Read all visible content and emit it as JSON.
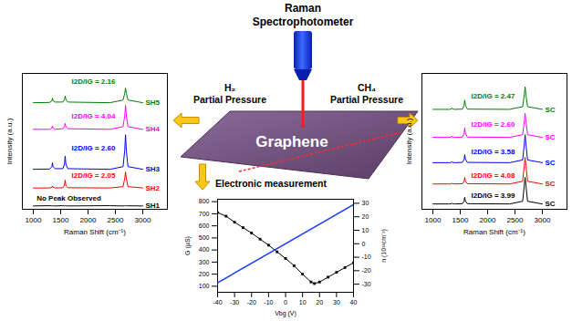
{
  "diagram": {
    "probe_label": [
      "Raman",
      "Spectrophotometer"
    ],
    "left_gas": [
      "H₂",
      "Partial Pressure"
    ],
    "right_gas": [
      "CH₄",
      "Partial Pressure"
    ],
    "sheet_label": "Graphene",
    "measurement_label": "Electronic measurement"
  },
  "chart_data": [
    {
      "type": "line",
      "xlabel": "Raman Shift (cm⁻¹)",
      "ylabel": "Intensity (a.u.)",
      "tick_labels": "x",
      "x": [
        1000,
        1300,
        1340,
        1350,
        1360,
        1400,
        1540,
        1570,
        1582,
        1595,
        1630,
        2400,
        2640,
        2670,
        2685,
        2700,
        2730,
        3000
      ],
      "xlim": [
        800,
        3450
      ],
      "xticks": [
        1000,
        1500,
        2000,
        2500,
        3000
      ],
      "ylim": [
        0,
        10.2
      ],
      "series": [
        {
          "name": "SH1",
          "color": "#000000",
          "values": [
            0.25,
            0.27,
            0.25,
            0.28,
            0.26,
            0.25,
            0.27,
            0.25,
            0.28,
            0.26,
            0.25,
            0.27,
            0.25,
            0.26,
            0.28,
            0.25,
            0.26,
            0.25
          ]
        },
        {
          "name": "SH2",
          "color": "#ff0000",
          "values": [
            1.6,
            1.6,
            1.65,
            1.75,
            1.65,
            1.6,
            1.62,
            1.8,
            2.2,
            1.8,
            1.62,
            1.6,
            1.7,
            2.3,
            2.8,
            2.3,
            1.7,
            1.6
          ]
        },
        {
          "name": "SH3",
          "color": "#0000ff",
          "values": [
            3.0,
            3.02,
            3.2,
            3.5,
            3.2,
            3.05,
            3.05,
            3.4,
            4.0,
            3.4,
            3.05,
            3.0,
            3.2,
            4.4,
            5.6,
            4.4,
            3.2,
            3.0
          ]
        },
        {
          "name": "SH4",
          "color": "#ff00ff",
          "values": [
            6.0,
            6.0,
            6.1,
            6.25,
            6.1,
            6.0,
            6.05,
            6.2,
            6.45,
            6.2,
            6.05,
            6.0,
            6.2,
            7.0,
            7.8,
            7.0,
            6.2,
            6.0
          ]
        },
        {
          "name": "SH5",
          "color": "#008000",
          "values": [
            8.0,
            8.02,
            8.15,
            8.35,
            8.15,
            8.05,
            8.05,
            8.25,
            8.5,
            8.25,
            8.05,
            8.0,
            8.2,
            8.7,
            9.1,
            8.7,
            8.2,
            8.0
          ]
        }
      ],
      "annotations": [
        {
          "text": "No Peak Observed",
          "x": 1650,
          "y": 0.85,
          "color": "#000000"
        },
        {
          "text": "I2D/IG = 2.05",
          "x": 2100,
          "y": 2.55,
          "color": "#ff0000"
        },
        {
          "text": "I2D/IG = 2.60",
          "x": 2100,
          "y": 4.6,
          "color": "#0000ff"
        },
        {
          "text": "I2D/IG = 4.04",
          "x": 2100,
          "y": 7.0,
          "color": "#ff00ff"
        },
        {
          "text": "I2D/IG = 2.16",
          "x": 2100,
          "y": 9.6,
          "color": "#008000"
        }
      ]
    },
    {
      "type": "line",
      "xlabel": "Raman Shift (cm⁻¹)",
      "ylabel": "Intensity (a.u.)",
      "tick_labels": "x",
      "x": [
        1000,
        1300,
        1340,
        1350,
        1360,
        1400,
        1540,
        1570,
        1582,
        1595,
        1630,
        2400,
        2640,
        2670,
        2685,
        2700,
        2730,
        3000
      ],
      "xlim": [
        800,
        3450
      ],
      "xticks": [
        1000,
        1500,
        2000,
        2500,
        3000
      ],
      "ylim": [
        0,
        10.2
      ],
      "series": [
        {
          "name": "SC",
          "color": "#000000",
          "values": [
            0.4,
            0.4,
            0.42,
            0.45,
            0.42,
            0.4,
            0.42,
            0.6,
            0.9,
            0.6,
            0.42,
            0.4,
            0.6,
            1.8,
            2.4,
            1.8,
            0.6,
            0.4
          ]
        },
        {
          "name": "SC",
          "color": "#ff0000",
          "values": [
            1.9,
            1.9,
            1.92,
            1.95,
            1.92,
            1.9,
            1.92,
            2.1,
            2.4,
            2.1,
            1.92,
            1.9,
            2.1,
            3.3,
            3.9,
            3.3,
            2.1,
            1.9
          ]
        },
        {
          "name": "SC",
          "color": "#0000ff",
          "values": [
            3.5,
            3.5,
            3.52,
            3.57,
            3.52,
            3.5,
            3.52,
            3.75,
            4.1,
            3.75,
            3.52,
            3.5,
            3.7,
            4.9,
            5.6,
            4.9,
            3.7,
            3.5
          ]
        },
        {
          "name": "SC",
          "color": "#ff00ff",
          "values": [
            5.4,
            5.4,
            5.43,
            5.5,
            5.43,
            5.4,
            5.42,
            5.7,
            6.1,
            5.7,
            5.42,
            5.4,
            5.6,
            6.6,
            7.2,
            6.6,
            5.6,
            5.4
          ]
        },
        {
          "name": "SC",
          "color": "#008000",
          "values": [
            7.5,
            7.5,
            7.53,
            7.6,
            7.53,
            7.5,
            7.52,
            7.8,
            8.2,
            7.8,
            7.52,
            7.5,
            7.7,
            8.6,
            9.2,
            8.6,
            7.7,
            7.5
          ]
        }
      ],
      "annotations": [
        {
          "text": "I2D/IG = 3.99",
          "x": 2100,
          "y": 1.0,
          "color": "#000000"
        },
        {
          "text": "I2D/IG = 4.08",
          "x": 2100,
          "y": 2.55,
          "color": "#ff0000"
        },
        {
          "text": "I2D/IG = 3.58",
          "x": 2100,
          "y": 4.3,
          "color": "#0000ff"
        },
        {
          "text": "I2D/IG = 2.60",
          "x": 2100,
          "y": 6.4,
          "color": "#ff00ff"
        },
        {
          "text": "I2D/IG = 2.47",
          "x": 2100,
          "y": 8.5,
          "color": "#008000"
        }
      ]
    },
    {
      "type": "line",
      "xlabel": "Vbg (V)",
      "ylabel": "G (μS)",
      "y2label": "n (10¹¹cm⁻²)",
      "xlim": [
        -40,
        40
      ],
      "xticks": [
        -40,
        -30,
        -20,
        -10,
        0,
        10,
        20,
        30,
        40
      ],
      "ylim": [
        50,
        820
      ],
      "yticks": [
        100,
        200,
        300,
        400,
        500,
        600,
        700,
        800
      ],
      "y2lim": [
        -36,
        33
      ],
      "y2ticks": [
        -30,
        -20,
        -10,
        0,
        10,
        20,
        30
      ],
      "series": [
        {
          "color": "#000000",
          "marker": "square",
          "x": [
            -40,
            -35,
            -30,
            -25,
            -20,
            -15,
            -10,
            -5,
            0,
            5,
            10,
            15,
            17,
            20,
            25,
            30,
            35,
            40
          ],
          "values": [
            710,
            680,
            630,
            585,
            540,
            490,
            440,
            385,
            330,
            270,
            200,
            135,
            122,
            135,
            175,
            215,
            255,
            295
          ]
        },
        {
          "color": "#1a3cff",
          "axis": "y2",
          "line_style": "solid",
          "x": [
            -40,
            40
          ],
          "values": [
            -29,
            29
          ]
        }
      ]
    }
  ]
}
